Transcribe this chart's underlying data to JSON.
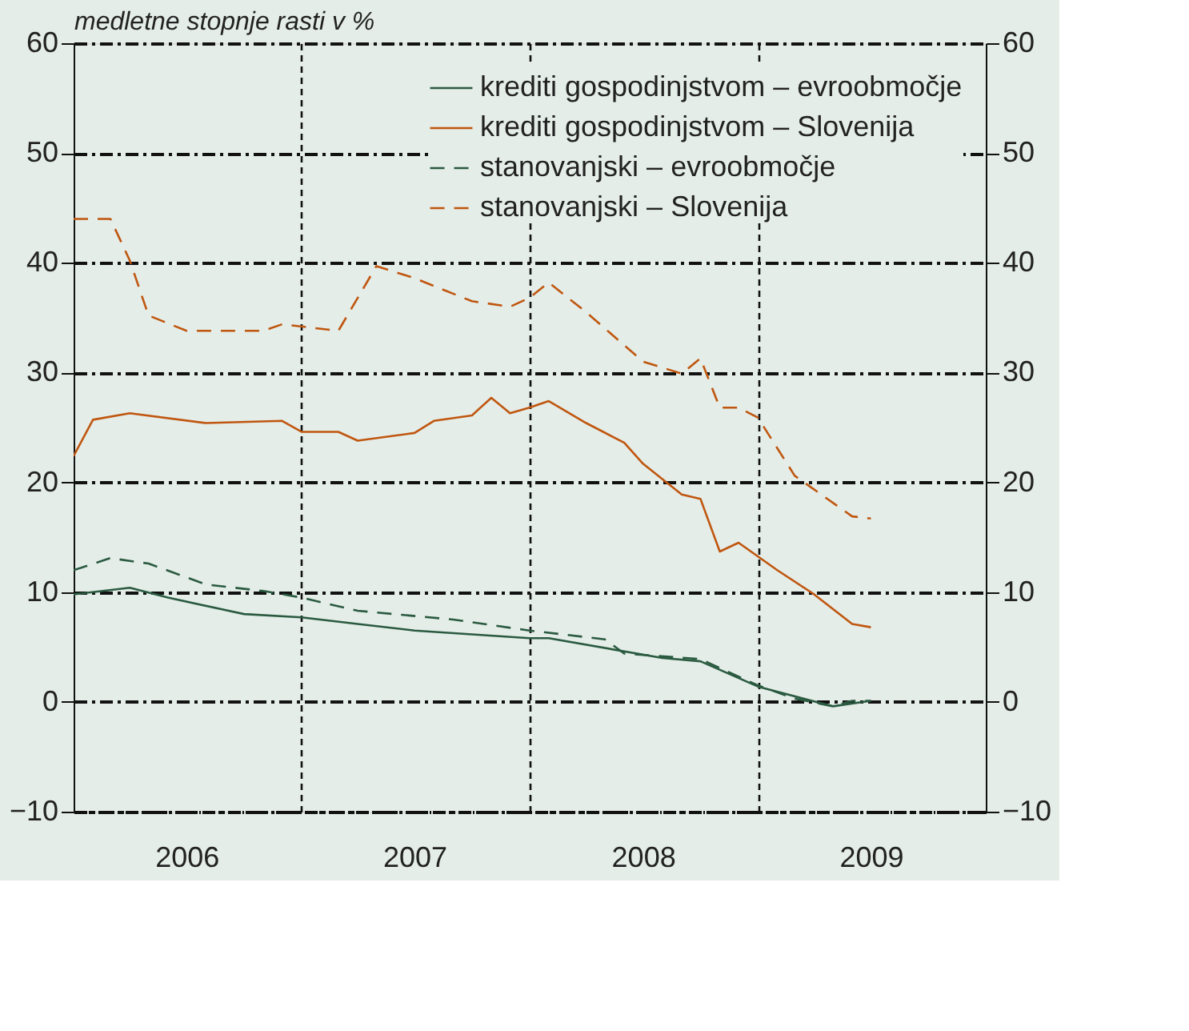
{
  "chart_data": {
    "type": "line",
    "ylabel": "medletne stopnje rasti v %",
    "xlim": [
      "2006-01",
      "2010-01"
    ],
    "xticks": [
      {
        "value": "2006-07",
        "label": "2006"
      },
      {
        "value": "2007-01",
        "label": null
      },
      {
        "value": "2007-07",
        "label": "2007"
      },
      {
        "value": "2008-01",
        "label": null
      },
      {
        "value": "2008-07",
        "label": "2008"
      },
      {
        "value": "2009-01",
        "label": null
      },
      {
        "value": "2009-07",
        "label": "2009"
      }
    ],
    "ylim": [
      -10,
      60
    ],
    "yticks": [
      -10,
      0,
      10,
      20,
      30,
      40,
      50,
      60
    ],
    "y2lim": [
      -10,
      60
    ],
    "y2ticks": [
      -10,
      0,
      10,
      20,
      30,
      40,
      50,
      60
    ],
    "grid": true,
    "legend": "top right",
    "series": [
      {
        "name": "krediti gospodinjstvom – evroobmočje",
        "color": "#2a5a40",
        "line_style": "solid",
        "x": [
          "2006-01",
          "2006-04",
          "2006-06",
          "2006-10",
          "2007-01",
          "2007-04",
          "2007-07",
          "2008-01",
          "2008-02",
          "2008-08",
          "2008-10",
          "2009-01",
          "2009-05",
          "2009-07"
        ],
        "values": [
          9.8,
          10.4,
          9.5,
          8.0,
          7.7,
          7.1,
          6.5,
          5.8,
          5.8,
          4.0,
          3.7,
          1.4,
          -0.4,
          0.1
        ]
      },
      {
        "name": "krediti gospodinjstvom – Slovenija",
        "color": "#c0560f",
        "line_style": "solid",
        "x": [
          "2006-01",
          "2006-02",
          "2006-04",
          "2006-08",
          "2006-12",
          "2007-01",
          "2007-03",
          "2007-04",
          "2007-07",
          "2007-08",
          "2007-10",
          "2007-11",
          "2007-12",
          "2008-01",
          "2008-02",
          "2008-04",
          "2008-06",
          "2008-07",
          "2008-09",
          "2008-10",
          "2008-11",
          "2008-12",
          "2009-02",
          "2009-04",
          "2009-06",
          "2009-07"
        ],
        "values": [
          22.4,
          25.7,
          26.3,
          25.4,
          25.6,
          24.6,
          24.6,
          23.8,
          24.5,
          25.6,
          26.1,
          27.7,
          26.3,
          26.8,
          27.4,
          25.4,
          23.6,
          21.7,
          18.9,
          18.5,
          13.7,
          14.5,
          12.0,
          9.8,
          7.1,
          6.8
        ]
      },
      {
        "name": "stanovanjski – evroobmočje",
        "color": "#2a5a40",
        "line_style": "dashed",
        "x": [
          "2006-01",
          "2006-03",
          "2006-05",
          "2006-08",
          "2006-11",
          "2007-01",
          "2007-04",
          "2007-09",
          "2008-01",
          "2008-05",
          "2008-06",
          "2008-10",
          "2009-01",
          "2009-03",
          "2009-05",
          "2009-06",
          "2009-07"
        ],
        "values": [
          12.0,
          13.1,
          12.6,
          10.7,
          10.1,
          9.5,
          8.3,
          7.5,
          6.5,
          5.7,
          4.4,
          3.9,
          1.5,
          0.3,
          -0.4,
          0.1,
          0.1
        ]
      },
      {
        "name": "stanovanjski – Slovenija",
        "color": "#c0560f",
        "line_style": "dashed",
        "x": [
          "2006-01",
          "2006-02",
          "2006-03",
          "2006-04",
          "2006-05",
          "2006-07",
          "2006-11",
          "2006-12",
          "2007-03",
          "2007-05",
          "2007-07",
          "2007-10",
          "2007-12",
          "2008-01",
          "2008-02",
          "2008-04",
          "2008-07",
          "2008-09",
          "2008-10",
          "2008-11",
          "2008-12",
          "2009-01",
          "2009-03",
          "2009-06",
          "2009-07"
        ],
        "values": [
          44.0,
          44.0,
          44.0,
          40.2,
          35.2,
          33.8,
          33.8,
          34.4,
          33.8,
          39.7,
          38.6,
          36.5,
          36.0,
          36.8,
          38.2,
          35.5,
          31.0,
          29.9,
          31.3,
          26.8,
          26.8,
          25.9,
          20.6,
          16.9,
          16.7
        ]
      }
    ]
  }
}
